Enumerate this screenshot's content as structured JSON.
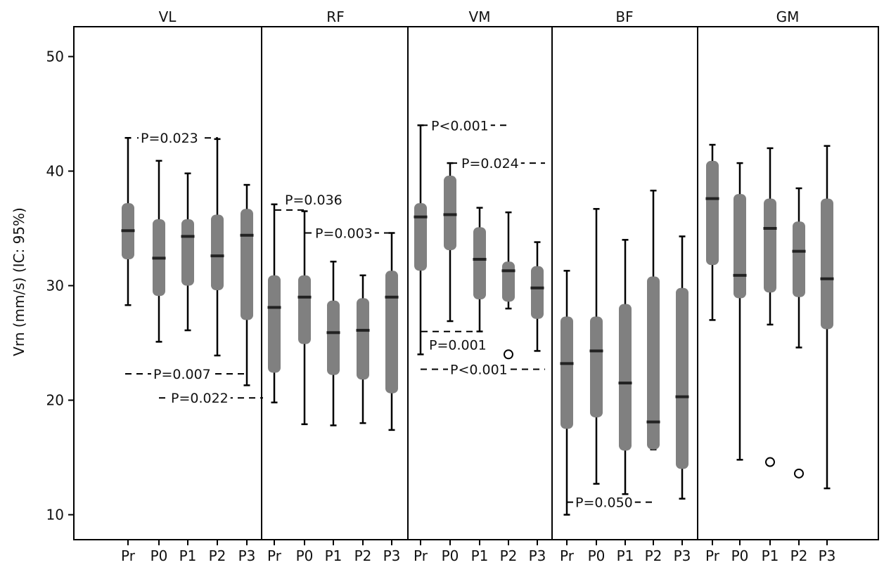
{
  "chart_data": {
    "type": "boxplot",
    "ylabel": "Vrn (mm/s) (IC: 95%)",
    "xlabel": "",
    "ylim": [
      8,
      53
    ],
    "yticks": [
      10,
      20,
      30,
      40,
      50
    ],
    "categories": [
      "Pr",
      "P0",
      "P1",
      "P2",
      "P3"
    ],
    "colors": {
      "box": "#808080",
      "median": "#222222",
      "line": "#000000",
      "background": "#ffffff"
    },
    "grid": false,
    "legend": "none",
    "panels": [
      {
        "name": "VL",
        "boxes": [
          {
            "label": "Pr",
            "min": 28.3,
            "q1": 32.3,
            "median": 34.8,
            "q3": 37.2,
            "max": 42.9,
            "outliers": []
          },
          {
            "label": "P0",
            "min": 25.1,
            "q1": 29.1,
            "median": 32.4,
            "q3": 35.8,
            "max": 40.9,
            "outliers": []
          },
          {
            "label": "P1",
            "min": 26.1,
            "q1": 30.0,
            "median": 34.3,
            "q3": 35.8,
            "max": 39.8,
            "outliers": []
          },
          {
            "label": "P2",
            "min": 23.9,
            "q1": 29.6,
            "median": 32.6,
            "q3": 36.2,
            "max": 42.8,
            "outliers": []
          },
          {
            "label": "P3",
            "min": 21.3,
            "q1": 27.0,
            "median": 34.4,
            "q3": 36.7,
            "max": 38.8,
            "outliers": []
          }
        ],
        "annotations": [
          {
            "text": "P=0.023",
            "y": 42.9,
            "from": "P0",
            "to": "P2"
          },
          {
            "text": "P=0.007",
            "y": 22.3,
            "from": "Pr",
            "to": "P3"
          },
          {
            "text": "P=0.022",
            "y": 20.2,
            "from": "P1",
            "to": "RF Pr"
          }
        ]
      },
      {
        "name": "RF",
        "boxes": [
          {
            "label": "Pr",
            "min": 19.8,
            "q1": 22.4,
            "median": 28.1,
            "q3": 30.9,
            "max": 37.1,
            "outliers": []
          },
          {
            "label": "P0",
            "min": 17.9,
            "q1": 24.9,
            "median": 29.0,
            "q3": 30.9,
            "max": 36.5,
            "outliers": []
          },
          {
            "label": "P1",
            "min": 17.8,
            "q1": 22.2,
            "median": 25.9,
            "q3": 28.7,
            "max": 32.1,
            "outliers": []
          },
          {
            "label": "P2",
            "min": 18.0,
            "q1": 21.8,
            "median": 26.1,
            "q3": 28.9,
            "max": 30.9,
            "outliers": []
          },
          {
            "label": "P3",
            "min": 17.4,
            "q1": 20.6,
            "median": 29.0,
            "q3": 31.3,
            "max": 34.6,
            "outliers": []
          }
        ],
        "annotations": [
          {
            "text": "P=0.036",
            "y": 36.6,
            "from": "Pr",
            "to": "P0"
          },
          {
            "text": "P=0.003",
            "y": 34.6,
            "from": "P0",
            "to": "P3"
          }
        ]
      },
      {
        "name": "VM",
        "boxes": [
          {
            "label": "Pr",
            "min": 24.0,
            "q1": 31.3,
            "median": 36.0,
            "q3": 37.2,
            "max": 44.0,
            "outliers": []
          },
          {
            "label": "P0",
            "min": 26.9,
            "q1": 33.1,
            "median": 36.2,
            "q3": 39.6,
            "max": 40.7,
            "outliers": []
          },
          {
            "label": "P1",
            "min": 26.0,
            "q1": 28.8,
            "median": 32.3,
            "q3": 35.1,
            "max": 36.8,
            "outliers": []
          },
          {
            "label": "P2",
            "min": 28.0,
            "q1": 28.6,
            "median": 31.3,
            "q3": 32.1,
            "max": 36.4,
            "outliers": [
              24.0
            ]
          },
          {
            "label": "P3",
            "min": 24.3,
            "q1": 27.1,
            "median": 29.8,
            "q3": 31.7,
            "max": 33.8,
            "outliers": []
          }
        ],
        "annotations": [
          {
            "text": "P<0.001",
            "y": 44.0,
            "from": "Pr",
            "to": "P2"
          },
          {
            "text": "P=0.024",
            "y": 40.7,
            "from": "P0",
            "to": "P3"
          },
          {
            "text": "P=0.001",
            "y": 26.0,
            "from": "Pr",
            "to": "P1"
          },
          {
            "text": "P<0.001",
            "y": 22.7,
            "from": "Pr",
            "to": "P3"
          }
        ]
      },
      {
        "name": "BF",
        "boxes": [
          {
            "label": "Pr",
            "min": 10.0,
            "q1": 17.5,
            "median": 23.2,
            "q3": 27.3,
            "max": 31.3,
            "outliers": []
          },
          {
            "label": "P0",
            "min": 12.7,
            "q1": 18.5,
            "median": 24.3,
            "q3": 27.3,
            "max": 36.7,
            "outliers": []
          },
          {
            "label": "P1",
            "min": 11.8,
            "q1": 15.6,
            "median": 21.5,
            "q3": 28.4,
            "max": 34.0,
            "outliers": []
          },
          {
            "label": "P2",
            "min": 15.7,
            "q1": 15.7,
            "median": 18.1,
            "q3": 30.8,
            "max": 38.3,
            "outliers": []
          },
          {
            "label": "P3",
            "min": 11.4,
            "q1": 14.0,
            "median": 20.3,
            "q3": 29.8,
            "max": 34.3,
            "outliers": []
          }
        ],
        "annotations": [
          {
            "text": "P=0.050",
            "y": 11.1,
            "from": "Pr",
            "to": "P2"
          }
        ]
      },
      {
        "name": "GM",
        "boxes": [
          {
            "label": "Pr",
            "min": 27.0,
            "q1": 31.8,
            "median": 37.6,
            "q3": 40.9,
            "max": 42.3,
            "outliers": []
          },
          {
            "label": "P0",
            "min": 14.8,
            "q1": 28.9,
            "median": 30.9,
            "q3": 38.0,
            "max": 40.7,
            "outliers": []
          },
          {
            "label": "P1",
            "min": 26.6,
            "q1": 29.4,
            "median": 35.0,
            "q3": 37.6,
            "max": 42.0,
            "outliers": [
              14.6
            ]
          },
          {
            "label": "P2",
            "min": 24.6,
            "q1": 29.0,
            "median": 33.0,
            "q3": 35.6,
            "max": 38.5,
            "outliers": [
              13.6
            ]
          },
          {
            "label": "P3",
            "min": 12.3,
            "q1": 26.2,
            "median": 30.6,
            "q3": 37.6,
            "max": 42.2,
            "outliers": []
          }
        ],
        "annotations": []
      }
    ]
  }
}
